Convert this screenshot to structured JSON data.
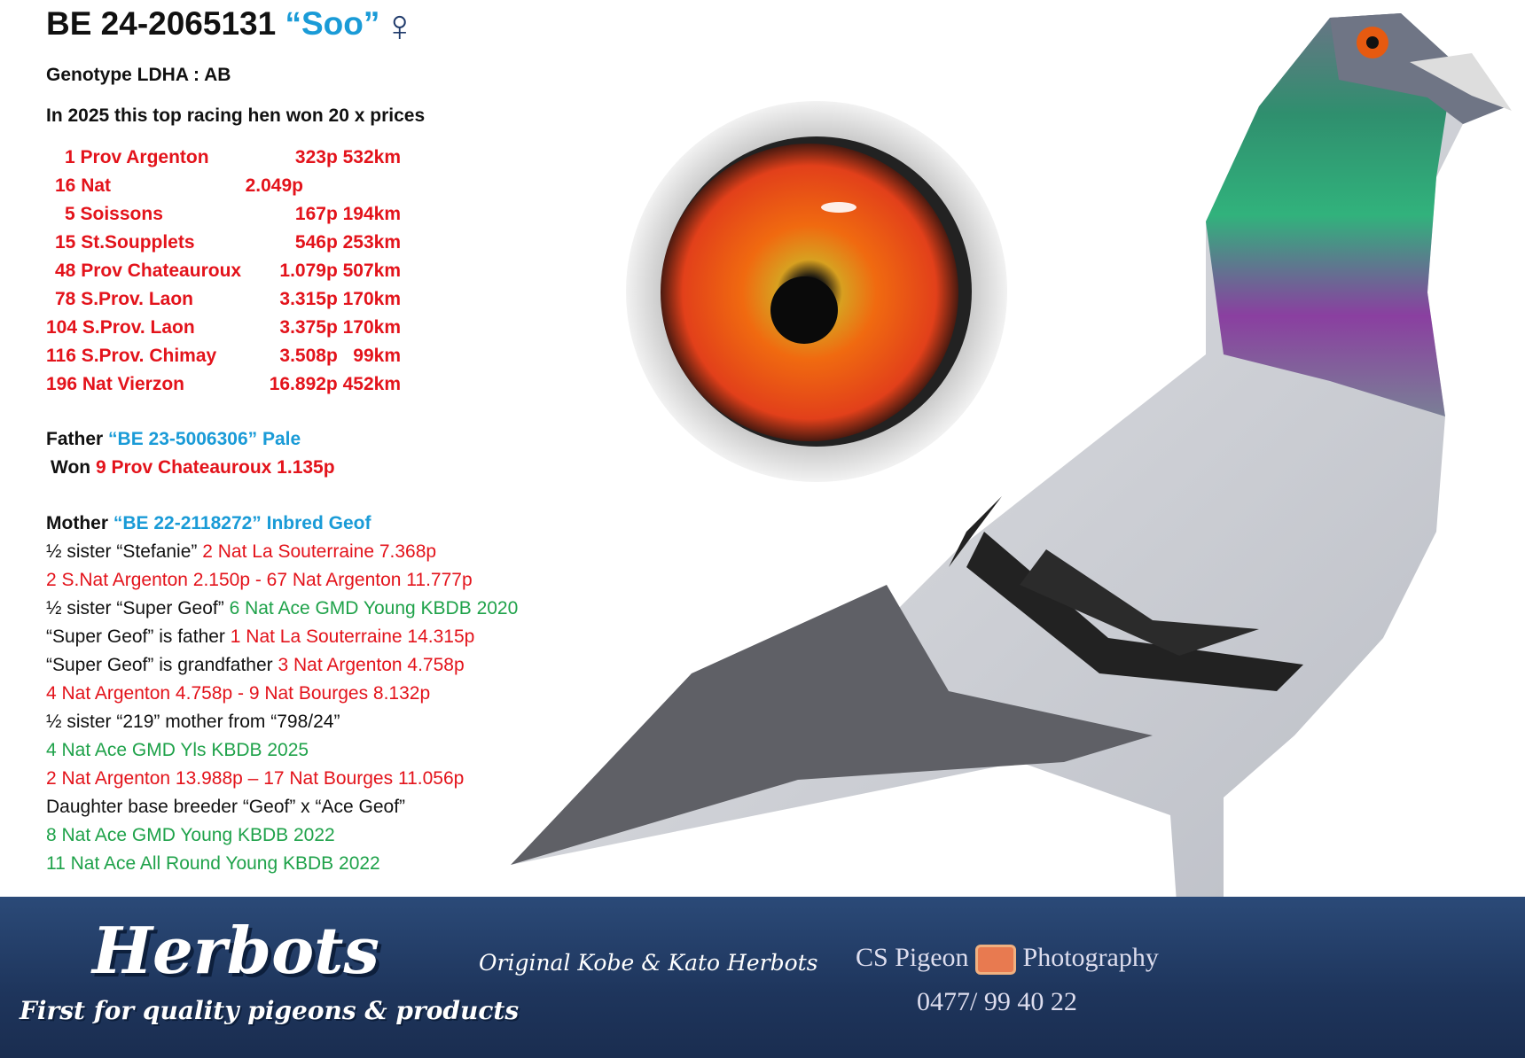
{
  "title": {
    "ring": "BE 24-2065131",
    "name": "“Soo”",
    "sex_icon": "female-symbol"
  },
  "genotype": "Genotype LDHA : AB",
  "intro": "In 2025 this top racing hen won 20 x prices",
  "results": [
    {
      "place": "1 Prov Argenton",
      "detail": "323p 532km"
    },
    {
      "place": "16 Nat",
      "detail": "2.049p"
    },
    {
      "place": "5 Soissons",
      "detail": "167p 194km"
    },
    {
      "place": "15 St.Soupplets",
      "detail": "546p 253km"
    },
    {
      "place": "48 Prov Chateauroux",
      "detail": "1.079p 507km"
    },
    {
      "place": "78 S.Prov. Laon",
      "detail": "3.315p 170km"
    },
    {
      "place": "104 S.Prov. Laon",
      "detail": "3.375p 170km"
    },
    {
      "place": "116 S.Prov. Chimay",
      "detail": "3.508p   99km"
    },
    {
      "place": "196 Nat Vierzon",
      "detail": "16.892p 452km"
    }
  ],
  "father": {
    "label": "Father",
    "ring": "“BE 23-5006306” Pale",
    "won_label": "Won",
    "won": "9 Prov Chateauroux 1.135p"
  },
  "mother": {
    "label": "Mother",
    "ring": "“BE 22-2118272” Inbred Geof",
    "lines": [
      [
        {
          "t": "½ sister “Stefanie” ",
          "c": "black"
        },
        {
          "t": "2 Nat La Souterraine 7.368p",
          "c": "red"
        }
      ],
      [
        {
          "t": "2 S.Nat Argenton 2.150p - 67 Nat Argenton 11.777p",
          "c": "red"
        }
      ],
      [
        {
          "t": "½ sister “Super Geof” ",
          "c": "black"
        },
        {
          "t": "6 Nat Ace GMD Young KBDB 2020",
          "c": "green"
        }
      ],
      [
        {
          "t": "“Super Geof” is father ",
          "c": "black"
        },
        {
          "t": "1 Nat La Souterraine 14.315p",
          "c": "red"
        }
      ],
      [
        {
          "t": "“Super Geof” is grandfather ",
          "c": "black"
        },
        {
          "t": "3 Nat Argenton 4.758p",
          "c": "red"
        }
      ],
      [
        {
          "t": "4 Nat Argenton 4.758p - 9 Nat Bourges 8.132p",
          "c": "red"
        }
      ],
      [
        {
          "t": "½ sister “219” mother from “798/24”",
          "c": "black"
        }
      ],
      [
        {
          "t": "4 Nat Ace GMD Yls KBDB 2025",
          "c": "green"
        }
      ],
      [
        {
          "t": "2 Nat Argenton 13.988p – 17 Nat Bourges 11.056p",
          "c": "red"
        }
      ],
      [
        {
          "t": "Daughter base breeder “Geof” x “Ace Geof”",
          "c": "black"
        }
      ],
      [
        {
          "t": "8 Nat Ace GMD Young KBDB 2022",
          "c": "green"
        }
      ],
      [
        {
          "t": "11 Nat Ace All Round Young KBDB 2022",
          "c": "green"
        }
      ]
    ]
  },
  "footer": {
    "logo": "Herbots",
    "tagline": "First for quality pigeons & products",
    "original": "Original Kobe & Kato Herbots",
    "photographer_left": "CS Pigeon",
    "photographer_right": "Photography",
    "phone": "0477/ 99 40 22"
  },
  "colors": {
    "red": "#e3131b",
    "blue": "#1a9bd7",
    "green": "#1fa24a",
    "footer": "#22406c"
  }
}
